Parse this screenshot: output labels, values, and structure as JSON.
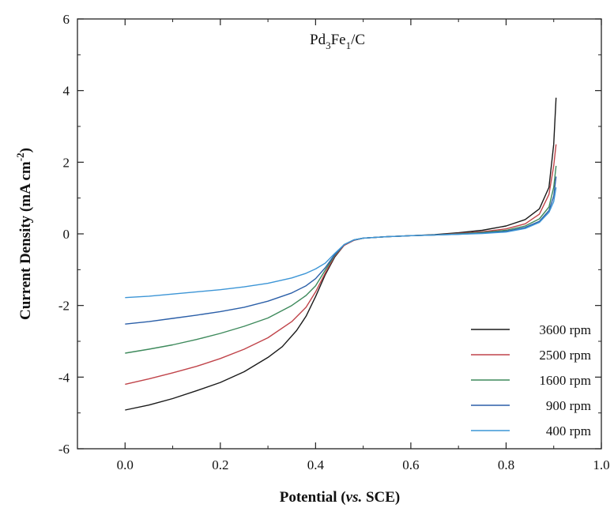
{
  "chart_data": {
    "type": "line",
    "annotation": {
      "prefix": "Pd",
      "sub1": "3",
      "mid": "Fe",
      "sub2": "1",
      "suffix": "/C"
    },
    "xlabel": {
      "main": "Potential (",
      "italic": "vs.",
      "rest": " SCE)"
    },
    "ylabel": {
      "main": "Current Density (mA cm",
      "sup": "-2",
      "end": ")"
    },
    "xlim": [
      -0.1,
      1.0
    ],
    "ylim": [
      -6,
      6
    ],
    "xticks": [
      "0.0",
      "0.2",
      "0.4",
      "0.6",
      "0.8",
      "1.0"
    ],
    "yticks": [
      "-6",
      "-4",
      "-2",
      "0",
      "2",
      "4",
      "6"
    ],
    "grid": false,
    "legend_position": "bottom-right",
    "series": [
      {
        "name": "3600 rpm",
        "color": "#1a1a1a",
        "points": [
          [
            0.0,
            -4.92
          ],
          [
            0.05,
            -4.78
          ],
          [
            0.1,
            -4.6
          ],
          [
            0.15,
            -4.38
          ],
          [
            0.2,
            -4.15
          ],
          [
            0.25,
            -3.85
          ],
          [
            0.3,
            -3.45
          ],
          [
            0.33,
            -3.15
          ],
          [
            0.36,
            -2.7
          ],
          [
            0.38,
            -2.3
          ],
          [
            0.4,
            -1.75
          ],
          [
            0.42,
            -1.15
          ],
          [
            0.44,
            -0.65
          ],
          [
            0.46,
            -0.32
          ],
          [
            0.48,
            -0.18
          ],
          [
            0.5,
            -0.12
          ],
          [
            0.55,
            -0.08
          ],
          [
            0.6,
            -0.05
          ],
          [
            0.65,
            -0.02
          ],
          [
            0.7,
            0.03
          ],
          [
            0.75,
            0.1
          ],
          [
            0.8,
            0.22
          ],
          [
            0.84,
            0.4
          ],
          [
            0.87,
            0.7
          ],
          [
            0.89,
            1.3
          ],
          [
            0.9,
            2.5
          ],
          [
            0.905,
            3.8
          ]
        ]
      },
      {
        "name": "2500 rpm",
        "color": "#c0444a",
        "points": [
          [
            0.0,
            -4.2
          ],
          [
            0.05,
            -4.05
          ],
          [
            0.1,
            -3.88
          ],
          [
            0.15,
            -3.7
          ],
          [
            0.2,
            -3.48
          ],
          [
            0.25,
            -3.22
          ],
          [
            0.3,
            -2.9
          ],
          [
            0.35,
            -2.45
          ],
          [
            0.38,
            -2.05
          ],
          [
            0.4,
            -1.62
          ],
          [
            0.42,
            -1.1
          ],
          [
            0.44,
            -0.62
          ],
          [
            0.46,
            -0.32
          ],
          [
            0.48,
            -0.18
          ],
          [
            0.5,
            -0.12
          ],
          [
            0.55,
            -0.08
          ],
          [
            0.6,
            -0.05
          ],
          [
            0.65,
            -0.03
          ],
          [
            0.7,
            0.01
          ],
          [
            0.75,
            0.06
          ],
          [
            0.8,
            0.14
          ],
          [
            0.84,
            0.28
          ],
          [
            0.87,
            0.55
          ],
          [
            0.89,
            1.1
          ],
          [
            0.9,
            1.9
          ],
          [
            0.905,
            2.5
          ]
        ]
      },
      {
        "name": "1600 rpm",
        "color": "#3e8a5c",
        "points": [
          [
            0.0,
            -3.33
          ],
          [
            0.05,
            -3.22
          ],
          [
            0.1,
            -3.1
          ],
          [
            0.15,
            -2.95
          ],
          [
            0.2,
            -2.78
          ],
          [
            0.25,
            -2.58
          ],
          [
            0.3,
            -2.35
          ],
          [
            0.35,
            -2.0
          ],
          [
            0.38,
            -1.72
          ],
          [
            0.4,
            -1.45
          ],
          [
            0.42,
            -1.02
          ],
          [
            0.44,
            -0.6
          ],
          [
            0.46,
            -0.3
          ],
          [
            0.48,
            -0.17
          ],
          [
            0.5,
            -0.12
          ],
          [
            0.55,
            -0.08
          ],
          [
            0.6,
            -0.05
          ],
          [
            0.65,
            -0.03
          ],
          [
            0.7,
            0.0
          ],
          [
            0.75,
            0.04
          ],
          [
            0.8,
            0.1
          ],
          [
            0.84,
            0.22
          ],
          [
            0.87,
            0.42
          ],
          [
            0.89,
            0.75
          ],
          [
            0.9,
            1.3
          ],
          [
            0.905,
            1.9
          ]
        ]
      },
      {
        "name": "900 rpm",
        "color": "#2b5fa8",
        "points": [
          [
            0.0,
            -2.52
          ],
          [
            0.05,
            -2.45
          ],
          [
            0.1,
            -2.36
          ],
          [
            0.15,
            -2.27
          ],
          [
            0.2,
            -2.17
          ],
          [
            0.25,
            -2.05
          ],
          [
            0.3,
            -1.88
          ],
          [
            0.35,
            -1.65
          ],
          [
            0.38,
            -1.45
          ],
          [
            0.4,
            -1.25
          ],
          [
            0.42,
            -0.95
          ],
          [
            0.44,
            -0.58
          ],
          [
            0.46,
            -0.3
          ],
          [
            0.48,
            -0.17
          ],
          [
            0.5,
            -0.12
          ],
          [
            0.55,
            -0.08
          ],
          [
            0.6,
            -0.05
          ],
          [
            0.65,
            -0.03
          ],
          [
            0.7,
            -0.01
          ],
          [
            0.75,
            0.02
          ],
          [
            0.8,
            0.07
          ],
          [
            0.84,
            0.18
          ],
          [
            0.87,
            0.35
          ],
          [
            0.89,
            0.65
          ],
          [
            0.9,
            1.05
          ],
          [
            0.905,
            1.6
          ]
        ]
      },
      {
        "name": "400 rpm",
        "color": "#3c95d6",
        "points": [
          [
            0.0,
            -1.78
          ],
          [
            0.05,
            -1.74
          ],
          [
            0.1,
            -1.68
          ],
          [
            0.15,
            -1.62
          ],
          [
            0.2,
            -1.56
          ],
          [
            0.25,
            -1.48
          ],
          [
            0.3,
            -1.38
          ],
          [
            0.35,
            -1.23
          ],
          [
            0.38,
            -1.1
          ],
          [
            0.4,
            -0.98
          ],
          [
            0.42,
            -0.82
          ],
          [
            0.44,
            -0.55
          ],
          [
            0.46,
            -0.3
          ],
          [
            0.48,
            -0.17
          ],
          [
            0.5,
            -0.12
          ],
          [
            0.55,
            -0.08
          ],
          [
            0.6,
            -0.05
          ],
          [
            0.65,
            -0.03
          ],
          [
            0.7,
            -0.01
          ],
          [
            0.75,
            0.01
          ],
          [
            0.8,
            0.05
          ],
          [
            0.84,
            0.15
          ],
          [
            0.87,
            0.32
          ],
          [
            0.89,
            0.6
          ],
          [
            0.9,
            0.9
          ],
          [
            0.905,
            1.3
          ]
        ]
      }
    ]
  }
}
